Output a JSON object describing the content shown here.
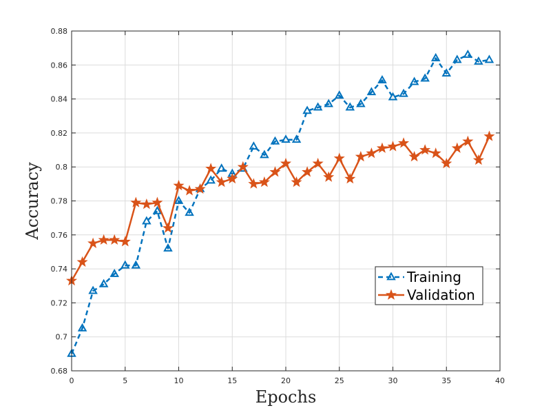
{
  "chart_data": {
    "type": "line",
    "title": "",
    "xlabel": "Epochs",
    "ylabel": "Accuracy",
    "xlim": [
      0,
      40
    ],
    "ylim": [
      0.68,
      0.88
    ],
    "xticks": [
      0,
      5,
      10,
      15,
      20,
      25,
      30,
      35,
      40
    ],
    "xtick_labels": [
      "0",
      "5",
      "10",
      "15",
      "20",
      "25",
      "30",
      "35",
      "40"
    ],
    "yticks": [
      0.68,
      0.7,
      0.72,
      0.74,
      0.76,
      0.78,
      0.8,
      0.82,
      0.84,
      0.86,
      0.88
    ],
    "ytick_labels": [
      "0.68",
      "0.7",
      "0.72",
      "0.74",
      "0.76",
      "0.78",
      "0.8",
      "0.82",
      "0.84",
      "0.86",
      "0.88"
    ],
    "grid": true,
    "legend_position": "lower-right",
    "x": [
      0,
      1,
      2,
      3,
      4,
      5,
      6,
      7,
      8,
      9,
      10,
      11,
      12,
      13,
      14,
      15,
      16,
      17,
      18,
      19,
      20,
      21,
      22,
      23,
      24,
      25,
      26,
      27,
      28,
      29,
      30,
      31,
      32,
      33,
      34,
      35,
      36,
      37,
      38,
      39
    ],
    "series": [
      {
        "name": "Training",
        "color": "#0072BD",
        "line_style": "dashed",
        "marker": "triangle",
        "values": [
          0.69,
          0.705,
          0.727,
          0.731,
          0.737,
          0.742,
          0.742,
          0.768,
          0.774,
          0.752,
          0.78,
          0.773,
          0.787,
          0.792,
          0.799,
          0.796,
          0.799,
          0.812,
          0.807,
          0.815,
          0.816,
          0.816,
          0.833,
          0.835,
          0.837,
          0.842,
          0.835,
          0.837,
          0.844,
          0.851,
          0.841,
          0.843,
          0.85,
          0.852,
          0.864,
          0.855,
          0.863,
          0.866,
          0.862,
          0.863
        ]
      },
      {
        "name": "Validation",
        "color": "#D95319",
        "line_style": "solid",
        "marker": "star",
        "values": [
          0.733,
          0.744,
          0.755,
          0.757,
          0.757,
          0.756,
          0.779,
          0.778,
          0.779,
          0.764,
          0.789,
          0.786,
          0.787,
          0.799,
          0.791,
          0.793,
          0.8,
          0.79,
          0.791,
          0.797,
          0.802,
          0.791,
          0.797,
          0.802,
          0.794,
          0.805,
          0.793,
          0.806,
          0.808,
          0.811,
          0.812,
          0.814,
          0.806,
          0.81,
          0.808,
          0.802,
          0.811,
          0.815,
          0.804,
          0.818
        ]
      }
    ]
  }
}
